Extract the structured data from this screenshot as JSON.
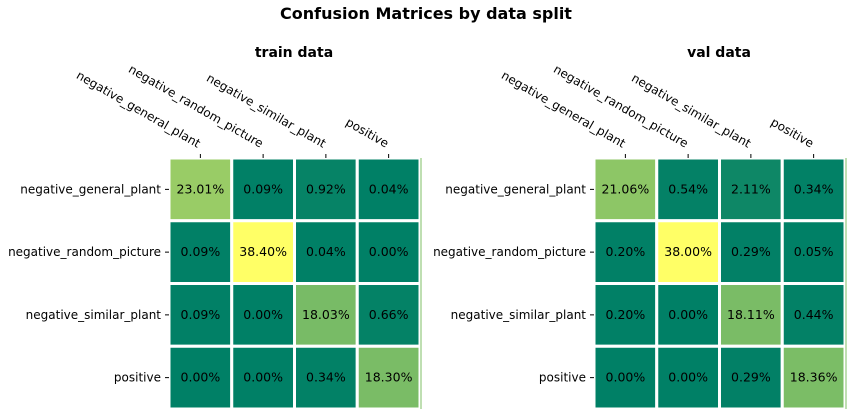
{
  "figure": {
    "title": "Confusion Matrices by data split"
  },
  "colors": {
    "low": "#008066",
    "high": "#ffff66",
    "grid": "#ffffff"
  },
  "chart_data": [
    {
      "type": "heatmap",
      "title": "train data",
      "x_labels": [
        "negative_general_plant",
        "negative_random_picture",
        "negative_similar_plant",
        "positive"
      ],
      "y_labels": [
        "negative_general_plant",
        "negative_random_picture",
        "negative_similar_plant",
        "positive"
      ],
      "values": [
        [
          23.01,
          0.09,
          0.92,
          0.04
        ],
        [
          0.09,
          38.4,
          0.04,
          0.0
        ],
        [
          0.09,
          0.0,
          18.03,
          0.66
        ],
        [
          0.0,
          0.0,
          0.34,
          18.3
        ]
      ],
      "cell_labels": [
        [
          "23.01%",
          "0.09%",
          "0.92%",
          "0.04%"
        ],
        [
          "0.09%",
          "38.40%",
          "0.04%",
          "0.00%"
        ],
        [
          "0.09%",
          "0.00%",
          "18.03%",
          "0.66%"
        ],
        [
          "0.00%",
          "0.00%",
          "0.34%",
          "18.30%"
        ]
      ],
      "colormap": "summer",
      "vmin": 0,
      "vmax": 38.4,
      "x_tick_position": "top"
    },
    {
      "type": "heatmap",
      "title": "val data",
      "x_labels": [
        "negative_general_plant",
        "negative_random_picture",
        "negative_similar_plant",
        "positive"
      ],
      "y_labels": [
        "negative_general_plant",
        "negative_random_picture",
        "negative_similar_plant",
        "positive"
      ],
      "values": [
        [
          21.06,
          0.54,
          2.11,
          0.34
        ],
        [
          0.2,
          38.0,
          0.29,
          0.05
        ],
        [
          0.2,
          0.0,
          18.11,
          0.44
        ],
        [
          0.0,
          0.0,
          0.29,
          18.36
        ]
      ],
      "cell_labels": [
        [
          "21.06%",
          "0.54%",
          "2.11%",
          "0.34%"
        ],
        [
          "0.20%",
          "38.00%",
          "0.29%",
          "0.05%"
        ],
        [
          "0.20%",
          "0.00%",
          "18.11%",
          "0.44%"
        ],
        [
          "0.00%",
          "0.00%",
          "0.29%",
          "18.36%"
        ]
      ],
      "colormap": "summer",
      "vmin": 0,
      "vmax": 38.0,
      "x_tick_position": "top"
    }
  ]
}
